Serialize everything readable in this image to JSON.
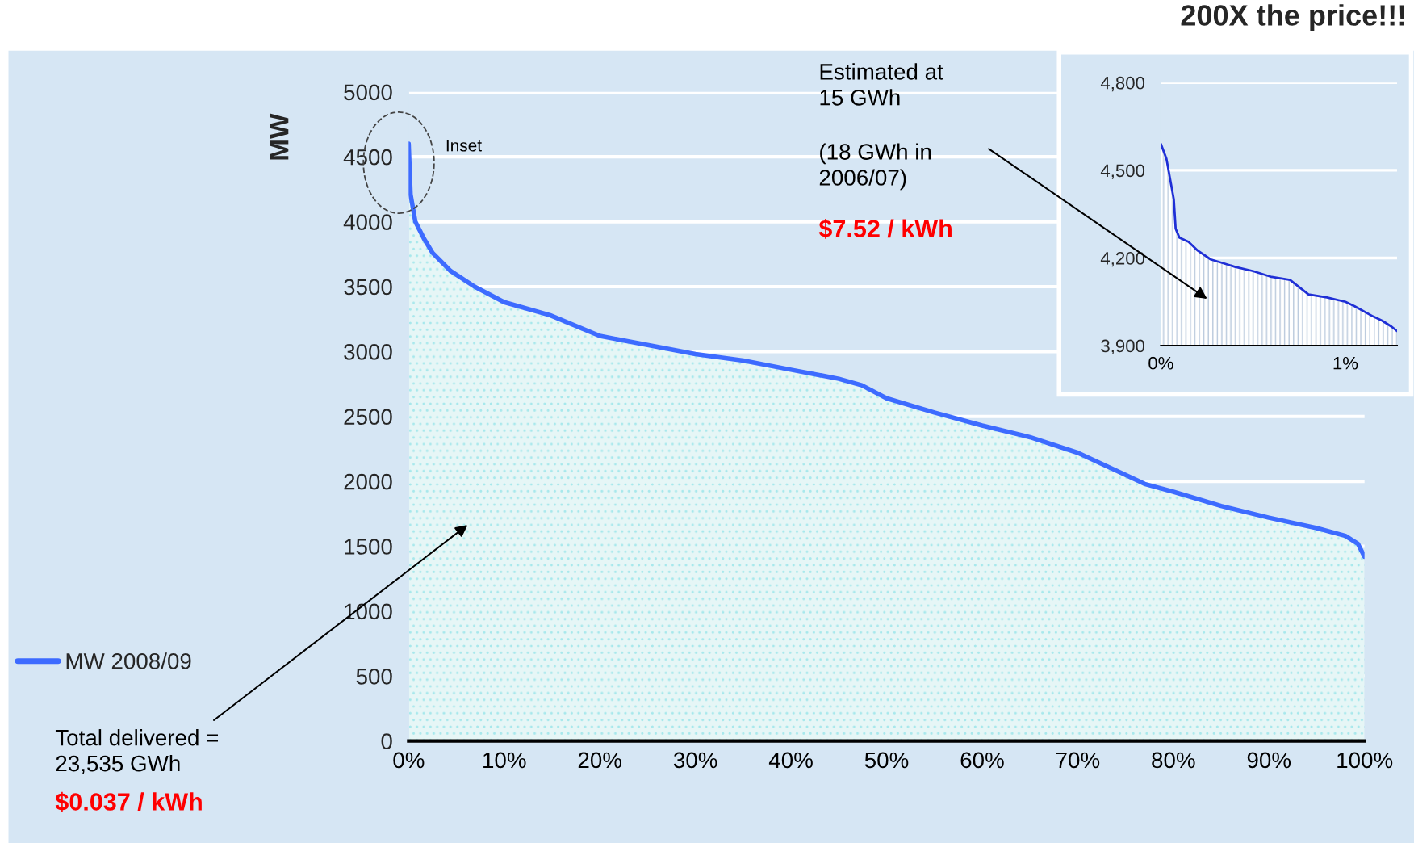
{
  "chart_data": [
    {
      "type": "area",
      "ylabel": "MW",
      "x": [
        0,
        0.2,
        0.7,
        1.6,
        2.5,
        4.4,
        6.9,
        10,
        14.8,
        20,
        25,
        30,
        35,
        40,
        45,
        47.4,
        50,
        55,
        60,
        65,
        70,
        74.7,
        77,
        80,
        85,
        90,
        95,
        98,
        99.3,
        100
      ],
      "series": [
        {
          "name": "MW 2008/09",
          "color": "#3d6bff",
          "values": [
            4600,
            4210,
            4000,
            3870,
            3760,
            3620,
            3500,
            3380,
            3280,
            3120,
            3050,
            2980,
            2930,
            2860,
            2790,
            2740,
            2640,
            2530,
            2430,
            2340,
            2220,
            2060,
            1980,
            1920,
            1810,
            1720,
            1640,
            1580,
            1520,
            1420
          ]
        }
      ],
      "xlim": [
        0,
        100
      ],
      "ylim": [
        0,
        5000
      ],
      "xticks": [
        {
          "value": 0,
          "label": "0%"
        },
        {
          "value": 10,
          "label": "10%"
        },
        {
          "value": 20,
          "label": "20%"
        },
        {
          "value": 30,
          "label": "30%"
        },
        {
          "value": 40,
          "label": "40%"
        },
        {
          "value": 50,
          "label": "50%"
        },
        {
          "value": 60,
          "label": "60%"
        },
        {
          "value": 70,
          "label": "70%"
        },
        {
          "value": 80,
          "label": "80%"
        },
        {
          "value": 90,
          "label": "90%"
        },
        {
          "value": 100,
          "label": "100%"
        }
      ],
      "yticks": [
        0,
        500,
        1000,
        1500,
        2000,
        2500,
        3000,
        3500,
        4000,
        4500,
        5000
      ],
      "grid": "y",
      "legend": "left",
      "annotations": [
        "Inset",
        "Total delivered =\n23,535 GWh",
        "$0.037 / kWh"
      ]
    },
    {
      "type": "area",
      "title": "200X the price!!!",
      "x": [
        0,
        0.03,
        0.07,
        0.08,
        0.1,
        0.15,
        0.2,
        0.27,
        0.4,
        0.5,
        0.6,
        0.7,
        0.75,
        0.8,
        0.9,
        1,
        1.05,
        1.15,
        1.2,
        1.25,
        1.28
      ],
      "series": [
        {
          "color": "#1f2fd6",
          "values": [
            4590,
            4540,
            4400,
            4300,
            4270,
            4255,
            4225,
            4195,
            4170,
            4155,
            4135,
            4125,
            4100,
            4075,
            4065,
            4050,
            4035,
            4000,
            3985,
            3965,
            3950
          ]
        }
      ],
      "xlim": [
        0,
        1.28
      ],
      "ylim": [
        3900,
        4800
      ],
      "xticks": [
        {
          "value": 0,
          "label": "0%"
        },
        {
          "value": 1,
          "label": "1%"
        }
      ],
      "yticks": [
        {
          "value": 3900,
          "label": "3,900"
        },
        {
          "value": 4200,
          "label": "4,200"
        },
        {
          "value": 4500,
          "label": "4,500"
        },
        {
          "value": 4800,
          "label": "4,800"
        }
      ],
      "grid": "y",
      "annotations": [
        "Estimated at\n15 GWh",
        "(18 GWh in\n2006/07)",
        "$7.52 / kWh"
      ]
    }
  ]
}
